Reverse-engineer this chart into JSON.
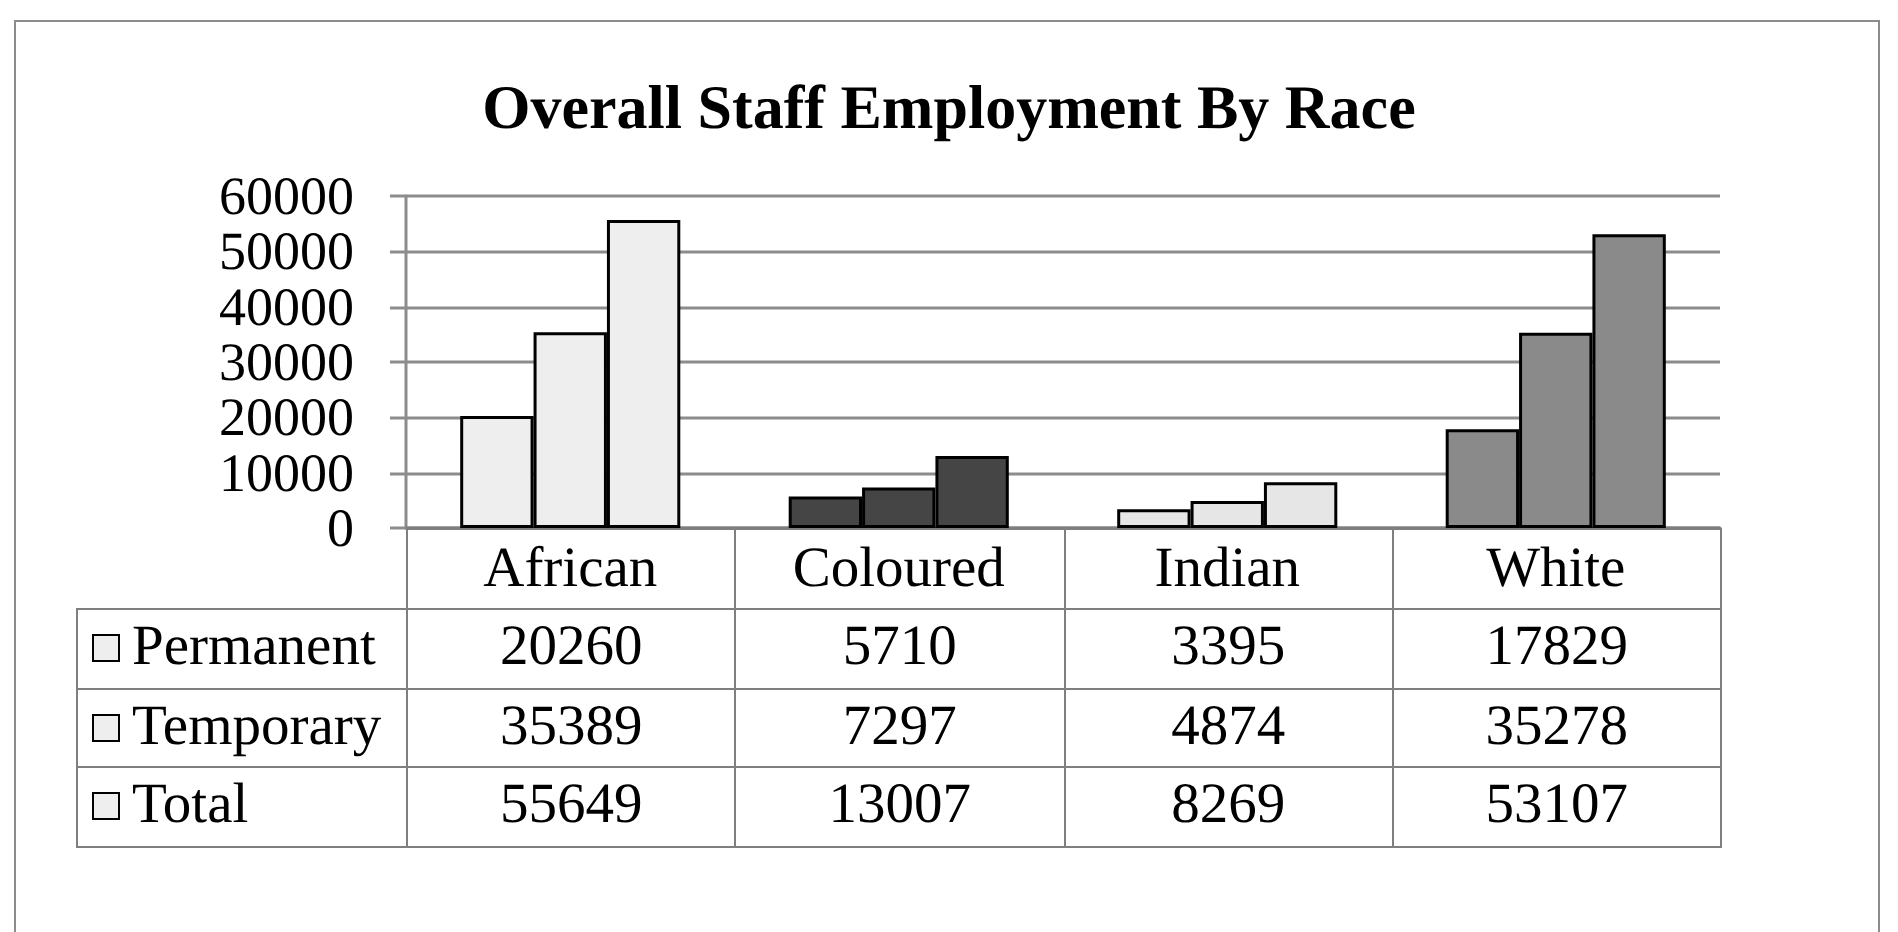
{
  "chart_data": {
    "type": "bar",
    "title": "Overall Staff Employment By Race",
    "categories": [
      "African",
      "Coloured",
      "Indian",
      "White"
    ],
    "series": [
      {
        "name": "Permanent",
        "colors": [
          "#eeeeee",
          "#454545",
          "#e6e6e6",
          "#8a8a8a"
        ],
        "values": [
          20260,
          5710,
          3395,
          17829
        ]
      },
      {
        "name": "Temporary",
        "colors": [
          "#eeeeee",
          "#454545",
          "#e6e6e6",
          "#8a8a8a"
        ],
        "values": [
          35389,
          7297,
          4874,
          35278
        ]
      },
      {
        "name": "Total",
        "colors": [
          "#eeeeee",
          "#454545",
          "#e6e6e6",
          "#8a8a8a"
        ],
        "values": [
          55649,
          13007,
          8269,
          53107
        ]
      }
    ],
    "ylim": [
      0,
      60000
    ],
    "yticks": [
      0,
      10000,
      20000,
      30000,
      40000,
      50000,
      60000
    ],
    "grid": "y",
    "legend": "bottom",
    "data_labels": true
  }
}
